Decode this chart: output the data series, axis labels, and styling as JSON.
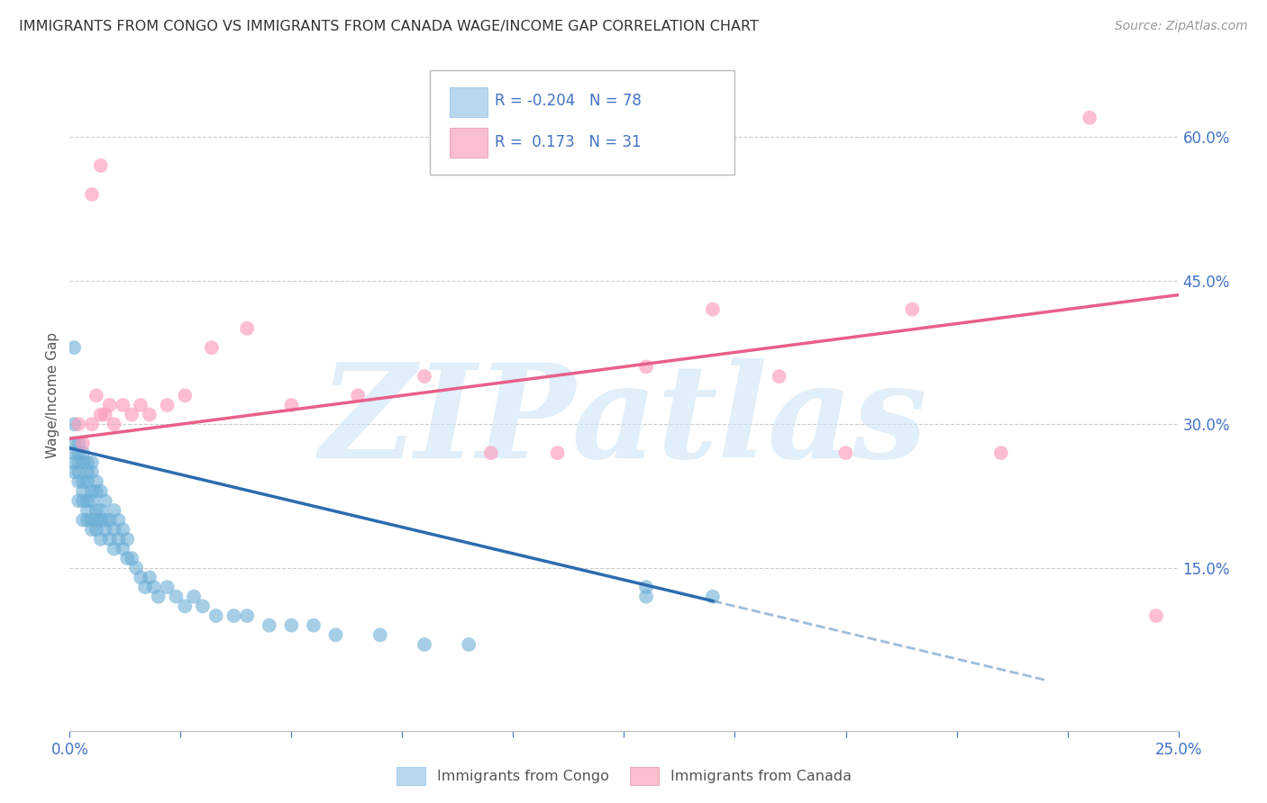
{
  "title": "IMMIGRANTS FROM CONGO VS IMMIGRANTS FROM CANADA WAGE/INCOME GAP CORRELATION CHART",
  "source": "Source: ZipAtlas.com",
  "ylabel": "Wage/Income Gap",
  "y_tick_values": [
    0.15,
    0.3,
    0.45,
    0.6
  ],
  "y_tick_labels_right": [
    "15.0%",
    "30.0%",
    "45.0%",
    "60.0%"
  ],
  "xlim": [
    0.0,
    0.25
  ],
  "ylim": [
    -0.02,
    0.68
  ],
  "congo_R": -0.204,
  "congo_N": 78,
  "canada_R": 0.173,
  "canada_N": 31,
  "congo_color": "#6baed6",
  "canada_color": "#fc9cbd",
  "congo_line_color": "#2b6cb0",
  "canada_line_color": "#e8608a",
  "background_color": "#ffffff",
  "grid_color": "#cccccc",
  "watermark_text": "ZIPatlas",
  "legend_box_color_congo": "#b8d8f0",
  "legend_box_color_canada": "#f9bfcf",
  "title_color": "#333333",
  "axis_color": "#4472c4",
  "congo_x": [
    0.001,
    0.001,
    0.001,
    0.001,
    0.001,
    0.002,
    0.002,
    0.002,
    0.002,
    0.002,
    0.002,
    0.003,
    0.003,
    0.003,
    0.003,
    0.003,
    0.003,
    0.004,
    0.004,
    0.004,
    0.004,
    0.004,
    0.004,
    0.005,
    0.005,
    0.005,
    0.005,
    0.005,
    0.005,
    0.006,
    0.006,
    0.006,
    0.006,
    0.006,
    0.007,
    0.007,
    0.007,
    0.007,
    0.008,
    0.008,
    0.008,
    0.009,
    0.009,
    0.01,
    0.01,
    0.01,
    0.011,
    0.011,
    0.012,
    0.012,
    0.013,
    0.013,
    0.014,
    0.015,
    0.016,
    0.017,
    0.018,
    0.019,
    0.02,
    0.022,
    0.024,
    0.026,
    0.028,
    0.03,
    0.033,
    0.037,
    0.04,
    0.045,
    0.05,
    0.055,
    0.06,
    0.07,
    0.08,
    0.09,
    0.13,
    0.13,
    0.145,
    0.001
  ],
  "congo_y": [
    0.25,
    0.26,
    0.27,
    0.28,
    0.3,
    0.22,
    0.24,
    0.25,
    0.26,
    0.27,
    0.28,
    0.2,
    0.22,
    0.23,
    0.24,
    0.26,
    0.27,
    0.2,
    0.21,
    0.22,
    0.24,
    0.25,
    0.26,
    0.19,
    0.2,
    0.22,
    0.23,
    0.25,
    0.26,
    0.19,
    0.2,
    0.21,
    0.23,
    0.24,
    0.18,
    0.2,
    0.21,
    0.23,
    0.19,
    0.2,
    0.22,
    0.18,
    0.2,
    0.17,
    0.19,
    0.21,
    0.18,
    0.2,
    0.17,
    0.19,
    0.16,
    0.18,
    0.16,
    0.15,
    0.14,
    0.13,
    0.14,
    0.13,
    0.12,
    0.13,
    0.12,
    0.11,
    0.12,
    0.11,
    0.1,
    0.1,
    0.1,
    0.09,
    0.09,
    0.09,
    0.08,
    0.08,
    0.07,
    0.07,
    0.12,
    0.13,
    0.12,
    0.38
  ],
  "canada_x": [
    0.002,
    0.003,
    0.005,
    0.006,
    0.007,
    0.008,
    0.009,
    0.01,
    0.012,
    0.014,
    0.016,
    0.018,
    0.022,
    0.026,
    0.032,
    0.04,
    0.05,
    0.065,
    0.08,
    0.095,
    0.11,
    0.13,
    0.145,
    0.16,
    0.175,
    0.19,
    0.21,
    0.23,
    0.245,
    0.005,
    0.007
  ],
  "canada_y": [
    0.3,
    0.28,
    0.3,
    0.33,
    0.31,
    0.31,
    0.32,
    0.3,
    0.32,
    0.31,
    0.32,
    0.31,
    0.32,
    0.33,
    0.38,
    0.4,
    0.32,
    0.33,
    0.35,
    0.27,
    0.27,
    0.36,
    0.42,
    0.35,
    0.27,
    0.42,
    0.27,
    0.62,
    0.1,
    0.54,
    0.57
  ],
  "congo_trend_x_start": 0.0,
  "congo_trend_x_solid_end": 0.145,
  "congo_trend_x_dash_end": 0.22,
  "canada_trend_x_start": 0.0,
  "canada_trend_x_end": 0.25
}
